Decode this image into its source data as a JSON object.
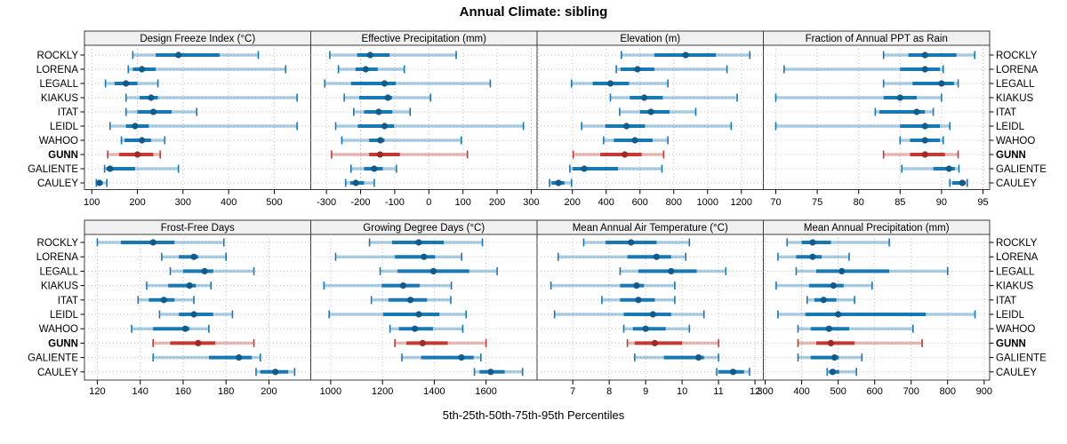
{
  "title": "Annual Climate: sibling",
  "caption": "5th-25th-50th-75th-95th Percentiles",
  "stations": [
    "ROCKLY",
    "LORENA",
    "LEGALL",
    "KIAKUS",
    "ITAT",
    "LEIDL",
    "WAHOO",
    "GUNN",
    "GALIENTE",
    "CAULEY"
  ],
  "highlight": {
    "station": "GUNN"
  },
  "colors": {
    "blue": "#1878b4",
    "blue_dot": "#115a8c",
    "red": "#c23a32",
    "red_dot": "#9e2b25",
    "header_bg": "#f0f0f0",
    "panel_border": "#3c3c3c",
    "grid": "#bdbdbd",
    "text": "#000000"
  },
  "chart_data": [
    {
      "type": "dot-interval",
      "title": "Design Freeze Index (°C)",
      "grid_row": 0,
      "grid_col": 0,
      "xlim": [
        84,
        580
      ],
      "xticks": [
        100,
        200,
        300,
        400,
        500
      ],
      "xtick_labels": [
        "100",
        "200",
        "300",
        "400",
        "500"
      ],
      "percentiles": [
        5,
        25,
        50,
        75,
        95
      ],
      "values": [
        [
          190,
          240,
          290,
          380,
          465
        ],
        [
          180,
          190,
          210,
          240,
          525
        ],
        [
          130,
          150,
          175,
          200,
          245
        ],
        [
          175,
          205,
          230,
          245,
          550
        ],
        [
          175,
          200,
          235,
          275,
          330
        ],
        [
          140,
          175,
          195,
          225,
          550
        ],
        [
          165,
          172,
          210,
          230,
          260
        ],
        [
          135,
          160,
          200,
          235,
          250
        ],
        [
          128,
          132,
          140,
          195,
          290
        ],
        [
          110,
          113,
          117,
          124,
          133
        ]
      ]
    },
    {
      "type": "dot-interval",
      "title": "Effective Precipitation (mm)",
      "grid_row": 0,
      "grid_col": 1,
      "xlim": [
        -346,
        317
      ],
      "xticks": [
        -300,
        -200,
        -100,
        0,
        100,
        200,
        300
      ],
      "xtick_labels": [
        "-300",
        "-200",
        "-100",
        "0",
        "100",
        "200",
        "300"
      ],
      "percentiles": [
        5,
        25,
        50,
        75,
        95
      ],
      "values": [
        [
          -290,
          -210,
          -172,
          -115,
          80
        ],
        [
          -265,
          -215,
          -185,
          -150,
          -72
        ],
        [
          -305,
          -228,
          -130,
          -97,
          180
        ],
        [
          -248,
          -204,
          -120,
          -108,
          5
        ],
        [
          -220,
          -190,
          -147,
          -107,
          -55
        ],
        [
          -273,
          -208,
          -130,
          -102,
          277
        ],
        [
          -255,
          -175,
          -142,
          -130,
          95
        ],
        [
          -285,
          -175,
          -143,
          -85,
          113
        ],
        [
          -228,
          -190,
          -160,
          -135,
          -95
        ],
        [
          -244,
          -230,
          -214,
          -190,
          -160
        ]
      ]
    },
    {
      "type": "dot-interval",
      "title": "Elevation (m)",
      "grid_row": 0,
      "grid_col": 2,
      "xlim": [
        -9,
        1330
      ],
      "xticks": [
        0,
        200,
        400,
        600,
        800,
        1000,
        1200
      ],
      "xtick_labels": [
        "",
        "200",
        "400",
        "600",
        "800",
        "1000",
        "1200"
      ],
      "percentiles": [
        5,
        25,
        50,
        75,
        95
      ],
      "values": [
        [
          490,
          685,
          870,
          1050,
          1250
        ],
        [
          460,
          485,
          585,
          685,
          1115
        ],
        [
          195,
          320,
          425,
          535,
          765
        ],
        [
          425,
          540,
          625,
          735,
          1175
        ],
        [
          480,
          600,
          665,
          775,
          930
        ],
        [
          255,
          395,
          520,
          630,
          1140
        ],
        [
          385,
          445,
          570,
          675,
          765
        ],
        [
          205,
          365,
          510,
          610,
          740
        ],
        [
          185,
          202,
          270,
          470,
          730
        ],
        [
          65,
          77,
          118,
          153,
          195
        ]
      ]
    },
    {
      "type": "dot-interval",
      "title": "Fraction of Annual PPT as Rain",
      "grid_row": 0,
      "grid_col": 3,
      "xlim": [
        68.5,
        95.8
      ],
      "xticks": [
        70,
        75,
        80,
        85,
        90,
        95
      ],
      "xtick_labels": [
        "70",
        "75",
        "80",
        "85",
        "90",
        "95"
      ],
      "percentiles": [
        5,
        25,
        50,
        75,
        95
      ],
      "values": [
        [
          83,
          86,
          88,
          91.8,
          94
        ],
        [
          71,
          85,
          88,
          89.8,
          90.2
        ],
        [
          83,
          86.5,
          90,
          91.5,
          92
        ],
        [
          70,
          83,
          85,
          87,
          90
        ],
        [
          82,
          82.5,
          87,
          88,
          89
        ],
        [
          70,
          85,
          88,
          89.8,
          91
        ],
        [
          85,
          86.2,
          88,
          89.8,
          90.2
        ],
        [
          83,
          86.2,
          88,
          90.4,
          92
        ],
        [
          85.2,
          89,
          90.9,
          91.6,
          92.1
        ],
        [
          91,
          91.3,
          92.5,
          92.9,
          93.1
        ]
      ]
    },
    {
      "type": "dot-interval",
      "title": "Frost-Free Days",
      "grid_row": 1,
      "grid_col": 0,
      "xlim": [
        114,
        219.5
      ],
      "xticks": [
        120,
        140,
        160,
        180,
        200
      ],
      "xtick_labels": [
        "120",
        "140",
        "160",
        "180",
        "200"
      ],
      "percentiles": [
        5,
        25,
        50,
        75,
        95
      ],
      "values": [
        [
          120,
          131,
          146,
          156,
          179
        ],
        [
          150,
          158,
          165,
          167,
          180
        ],
        [
          154,
          160,
          170,
          174,
          193
        ],
        [
          143,
          153,
          163,
          166,
          173
        ],
        [
          139,
          144,
          151,
          156,
          165
        ],
        [
          149,
          158,
          165,
          174,
          183
        ],
        [
          136,
          146,
          161,
          163,
          172
        ],
        [
          146,
          154,
          167,
          175,
          193
        ],
        [
          146,
          172,
          186,
          192,
          196
        ],
        [
          194,
          196,
          203,
          209,
          212
        ]
      ]
    },
    {
      "type": "dot-interval",
      "title": "Growing Degree Days (°C)",
      "grid_row": 1,
      "grid_col": 1,
      "xlim": [
        923,
        1797
      ],
      "xticks": [
        1000,
        1200,
        1400,
        1600
      ],
      "xtick_labels": [
        "1000",
        "1200",
        "1400",
        "1600"
      ],
      "percentiles": [
        5,
        25,
        50,
        75,
        95
      ],
      "values": [
        [
          1150,
          1237,
          1340,
          1437,
          1586
        ],
        [
          1019,
          1248,
          1360,
          1403,
          1506
        ],
        [
          1191,
          1258,
          1397,
          1535,
          1643
        ],
        [
          974,
          1197,
          1280,
          1344,
          1466
        ],
        [
          1157,
          1223,
          1308,
          1372,
          1464
        ],
        [
          994,
          1203,
          1340,
          1420,
          1523
        ],
        [
          1229,
          1263,
          1325,
          1395,
          1510
        ],
        [
          1248,
          1292,
          1355,
          1452,
          1600
        ],
        [
          1275,
          1349,
          1505,
          1552,
          1580
        ],
        [
          1555,
          1575,
          1618,
          1672,
          1741
        ]
      ]
    },
    {
      "type": "dot-interval",
      "title": "Mean Annual Air Temperature (°C)",
      "grid_row": 1,
      "grid_col": 2,
      "xlim": [
        6.02,
        12.23
      ],
      "xticks": [
        7,
        8,
        9,
        10,
        11,
        12
      ],
      "xtick_labels": [
        "7",
        "8",
        "9",
        "10",
        "11",
        "12"
      ],
      "percentiles": [
        5,
        25,
        50,
        75,
        95
      ],
      "values": [
        [
          7.3,
          7.9,
          8.6,
          9.3,
          10.2
        ],
        [
          6.6,
          8.5,
          9.3,
          9.7,
          10.1
        ],
        [
          8.3,
          8.8,
          9.7,
          10.4,
          11.2
        ],
        [
          6.4,
          8.3,
          8.75,
          8.95,
          9.8
        ],
        [
          7.8,
          8.3,
          8.8,
          9.25,
          9.8
        ],
        [
          6.5,
          8.4,
          9.2,
          9.7,
          10.6
        ],
        [
          8.4,
          8.65,
          9.0,
          9.55,
          10.2
        ],
        [
          8.5,
          8.7,
          9.25,
          10.0,
          11.0
        ],
        [
          8.7,
          9.5,
          10.45,
          10.6,
          11.0
        ],
        [
          10.95,
          11.0,
          11.4,
          11.7,
          11.85
        ]
      ]
    },
    {
      "type": "dot-interval",
      "title": "Mean Annual Precipitation (mm)",
      "grid_row": 1,
      "grid_col": 3,
      "xlim": [
        295,
        915
      ],
      "xticks": [
        300,
        400,
        500,
        600,
        700,
        800,
        900
      ],
      "xtick_labels": [
        "300",
        "400",
        "500",
        "600",
        "700",
        "800",
        "900"
      ],
      "percentiles": [
        5,
        25,
        50,
        75,
        95
      ],
      "values": [
        [
          360,
          400,
          430,
          480,
          640
        ],
        [
          335,
          385,
          430,
          455,
          530
        ],
        [
          385,
          440,
          510,
          640,
          800
        ],
        [
          330,
          420,
          487,
          515,
          593
        ],
        [
          415,
          435,
          460,
          495,
          545
        ],
        [
          335,
          410,
          500,
          740,
          875
        ],
        [
          390,
          425,
          475,
          530,
          705
        ],
        [
          390,
          440,
          480,
          545,
          730
        ],
        [
          390,
          425,
          490,
          502,
          565
        ],
        [
          470,
          475,
          485,
          503,
          550
        ]
      ]
    }
  ]
}
